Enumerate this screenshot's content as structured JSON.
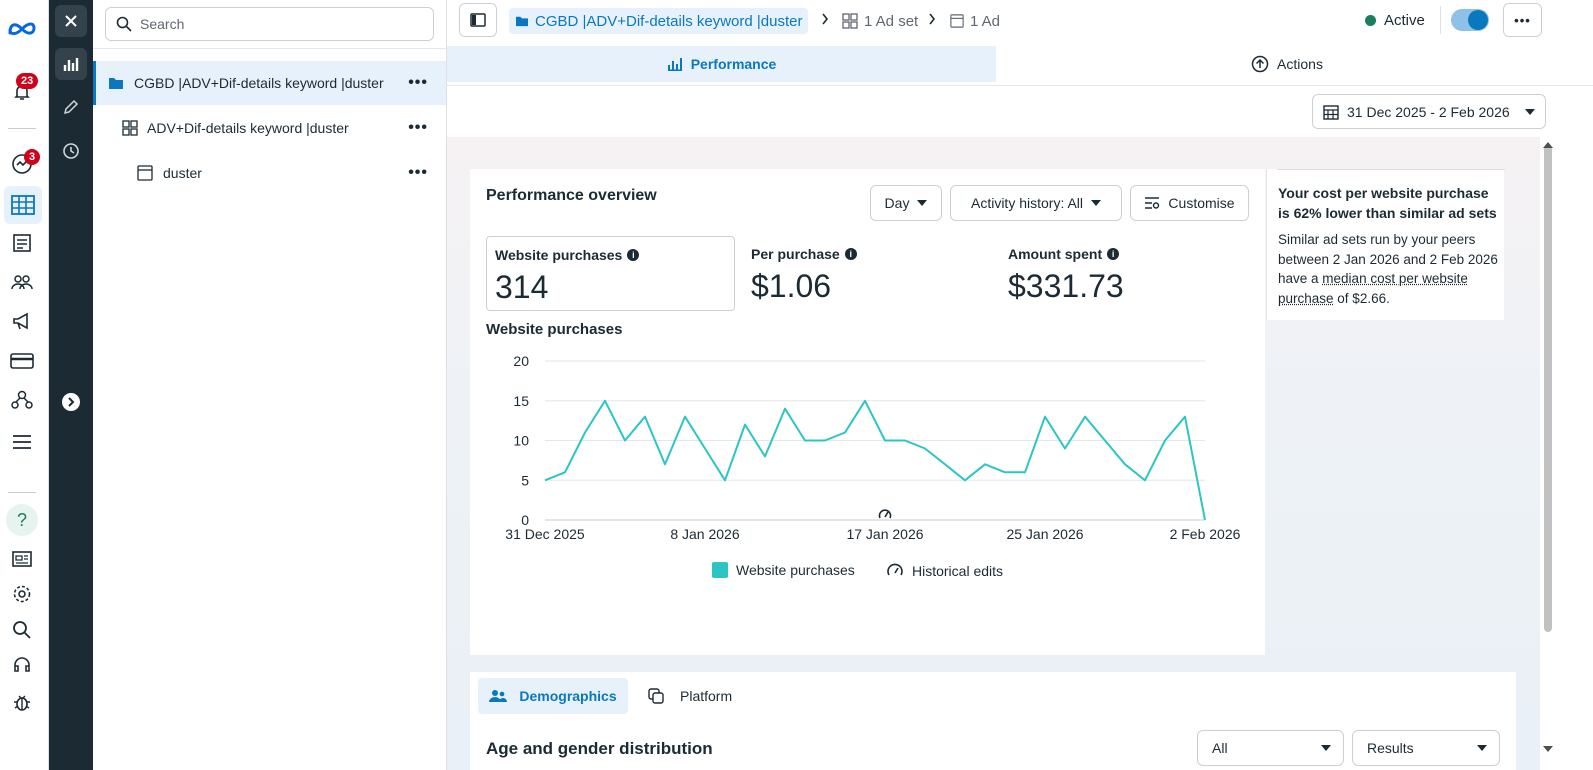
{
  "rail": {
    "notifications_badge": "23",
    "messages_badge": "3"
  },
  "tree": {
    "search_placeholder": "Search",
    "items": [
      {
        "label": "CGBD |ADV+Dif-details keyword |duster",
        "level": "campaign"
      },
      {
        "label": "ADV+Dif-details keyword |duster",
        "level": "adset"
      },
      {
        "label": "duster",
        "level": "ad"
      }
    ]
  },
  "header": {
    "crumb_campaign": "CGBD |ADV+Dif-details keyword |duster",
    "crumb_adset": "1 Ad set",
    "crumb_ad": "1 Ad",
    "status": "Active",
    "status_color": "#1a7f5a",
    "toggle_on": true
  },
  "tabs": {
    "performance": "Performance",
    "actions": "Actions"
  },
  "date_range": "31 Dec 2025 - 2 Feb 2026",
  "overview": {
    "title": "Performance overview",
    "granularity": "Day",
    "activity_history": "Activity history: All",
    "customise": "Customise",
    "metrics": [
      {
        "label": "Website purchases",
        "value": "314"
      },
      {
        "label": "Per purchase",
        "value": "$1.06"
      },
      {
        "label": "Amount spent",
        "value": "$331.73"
      }
    ],
    "chart_title": "Website purchases",
    "legend_series": "Website purchases",
    "legend_edits": "Historical edits"
  },
  "insight": {
    "title": "Your cost per website purchase is 62% lower than similar ad sets",
    "body_1": "Similar ad sets run by your peers between 2 Jan 2026 and 2 Feb 2026 have a ",
    "body_link": "median cost per website purchase",
    "body_2": " of $2.66."
  },
  "breakdown": {
    "tab_demographics": "Demographics",
    "tab_platform": "Platform",
    "title": "Age and gender distribution",
    "filter_all": "All",
    "filter_results": "Results"
  },
  "chart_data": {
    "type": "line",
    "title": "Website purchases",
    "xlabel": "",
    "ylabel": "",
    "x": [
      "31 Dec 2025",
      "1 Jan 2026",
      "2 Jan 2026",
      "3 Jan 2026",
      "4 Jan 2026",
      "5 Jan 2026",
      "6 Jan 2026",
      "7 Jan 2026",
      "8 Jan 2026",
      "9 Jan 2026",
      "10 Jan 2026",
      "11 Jan 2026",
      "12 Jan 2026",
      "13 Jan 2026",
      "14 Jan 2026",
      "15 Jan 2026",
      "16 Jan 2026",
      "17 Jan 2026",
      "18 Jan 2026",
      "19 Jan 2026",
      "20 Jan 2026",
      "21 Jan 2026",
      "22 Jan 2026",
      "23 Jan 2026",
      "24 Jan 2026",
      "25 Jan 2026",
      "26 Jan 2026",
      "27 Jan 2026",
      "28 Jan 2026",
      "29 Jan 2026",
      "30 Jan 2026",
      "31 Jan 2026",
      "1 Feb 2026",
      "2 Feb 2026"
    ],
    "series": [
      {
        "name": "Website purchases",
        "color": "#2bc6c3",
        "values": [
          5,
          6,
          11,
          15,
          10,
          13,
          7,
          13,
          9,
          5,
          12,
          8,
          14,
          10,
          10,
          11,
          15,
          10,
          10,
          9,
          7,
          5,
          7,
          6,
          6,
          13,
          9,
          13,
          10,
          7,
          5,
          10,
          13,
          0
        ]
      }
    ],
    "x_ticks": [
      "31 Dec 2025",
      "8 Jan 2026",
      "17 Jan 2026",
      "25 Jan 2026",
      "2 Feb 2026"
    ],
    "y_ticks": [
      0,
      5,
      10,
      15,
      20
    ],
    "ylim": [
      0,
      20
    ],
    "grid": true,
    "legend": "bottom"
  }
}
